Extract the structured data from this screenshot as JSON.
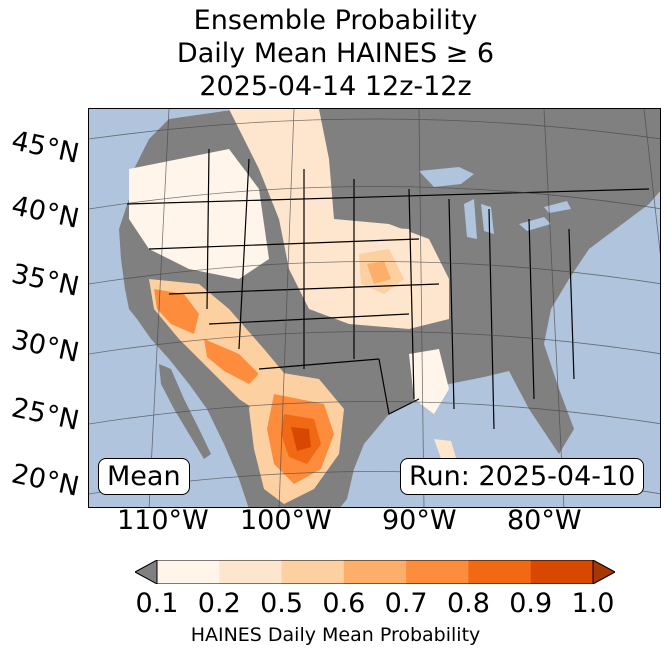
{
  "title": {
    "line1": "Ensemble Probability",
    "line2": "Daily Mean HAINES ≥ 6",
    "line3": "2025-04-14 12z-12z"
  },
  "map": {
    "ocean_color": "#b0c4de",
    "land_color": "#808080",
    "border_color": "#000000",
    "lat_labels": [
      "45°N",
      "40°N",
      "35°N",
      "30°N",
      "25°N",
      "20°N"
    ],
    "lon_labels": [
      "110°W",
      "100°W",
      "90°W",
      "80°W"
    ],
    "mean_label": "Mean",
    "run_label": "Run: 2025-04-10"
  },
  "colorbar": {
    "ticks": [
      "0.1",
      "0.2",
      "0.5",
      "0.6",
      "0.7",
      "0.8",
      "0.9",
      "1.0"
    ],
    "label": "HAINES Daily Mean Probability",
    "under_color": "#808080",
    "colors": [
      "#fff5eb",
      "#fee6ce",
      "#fdd0a2",
      "#fdae6b",
      "#fd8d3c",
      "#f16913",
      "#d94801",
      "#a63603"
    ]
  }
}
